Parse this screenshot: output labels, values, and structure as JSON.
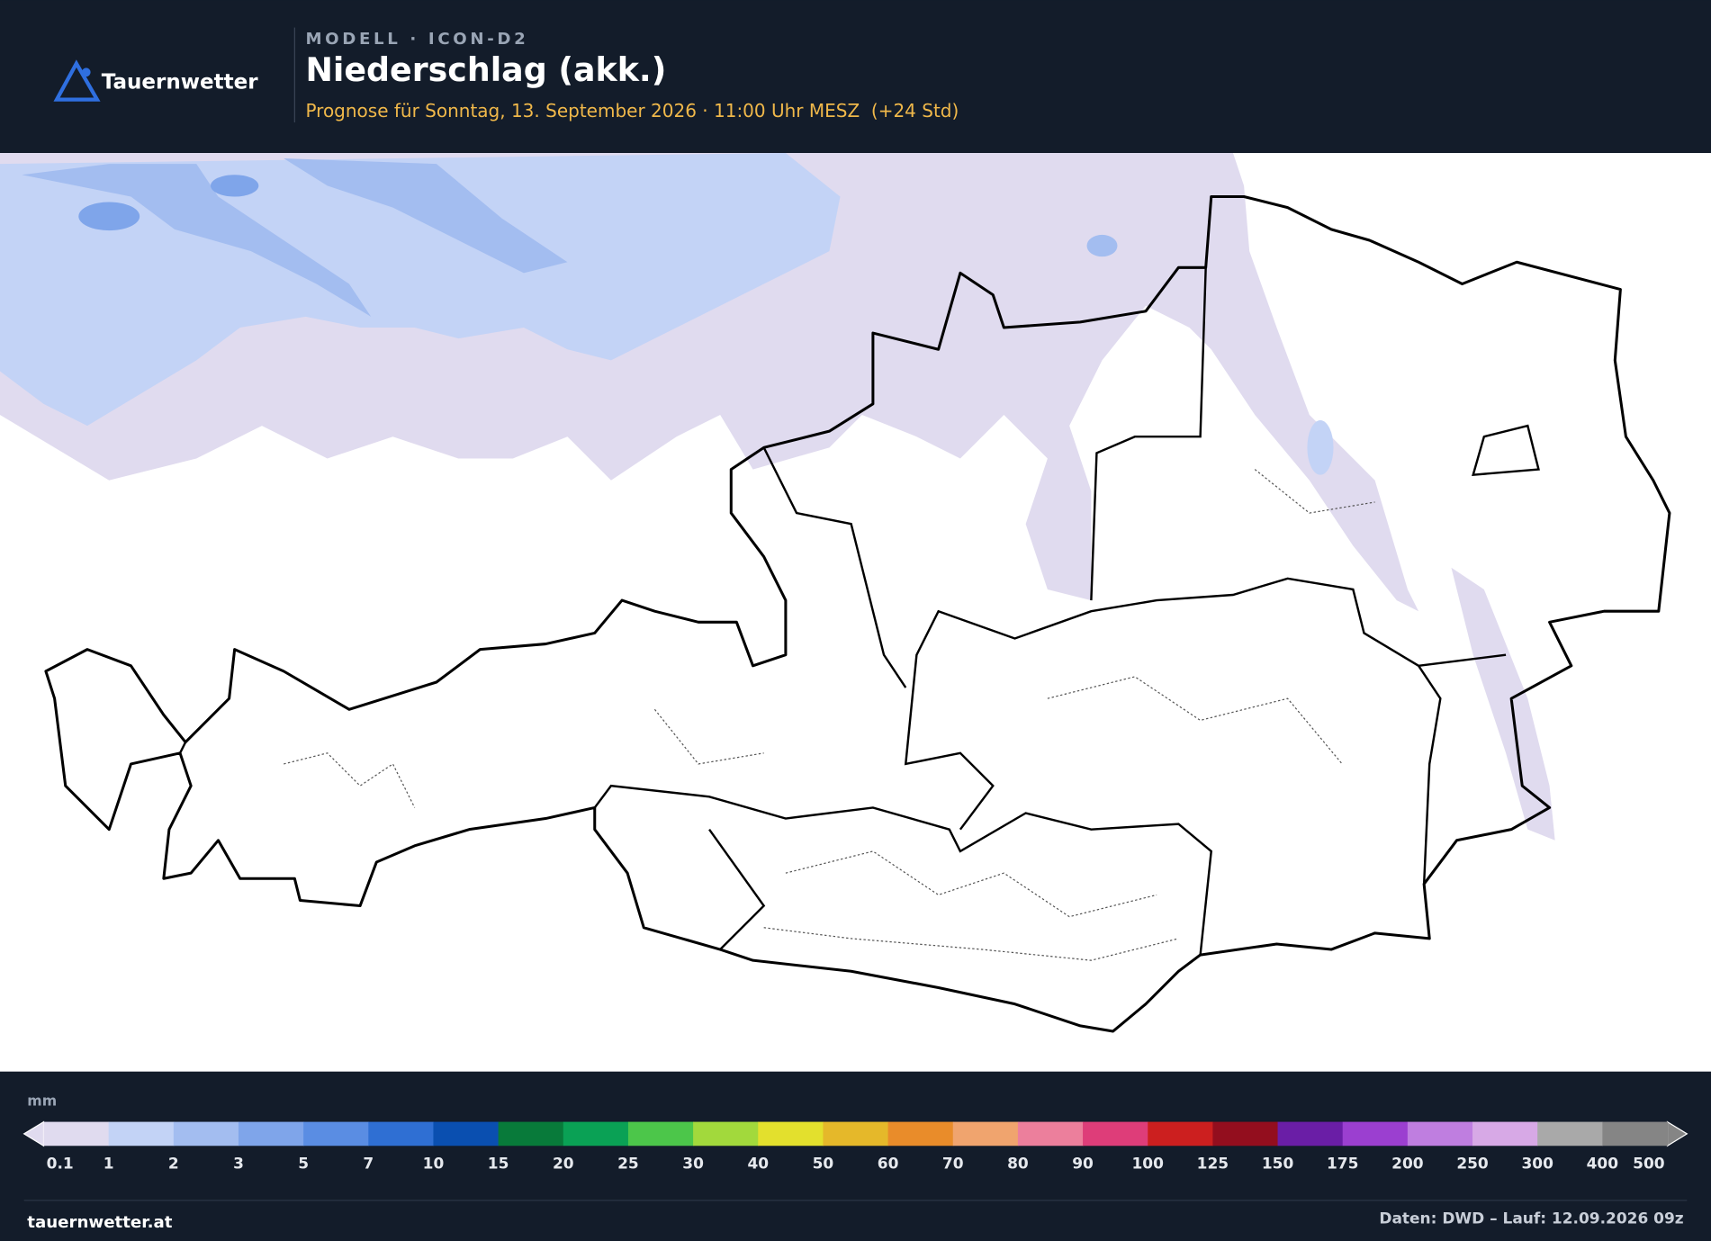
{
  "header": {
    "brand": "Tauernwetter",
    "model": "MODELL · ICON-D2",
    "title": "Niederschlag (akk.)",
    "subtitle": "Prognose für Sonntag, 13. September 2026 · 11:00 Uhr MESZ  (+24 Std)"
  },
  "legend": {
    "unit": "mm",
    "ticks": [
      0.1,
      1,
      2,
      3,
      5,
      7,
      10,
      15,
      20,
      25,
      30,
      40,
      50,
      60,
      70,
      80,
      90,
      100,
      125,
      150,
      175,
      200,
      250,
      300,
      400,
      500
    ],
    "colors": [
      "#e0dbef",
      "#c3d3f6",
      "#a3bdf0",
      "#7fa5ea",
      "#5a8de3",
      "#2f6fd3",
      "#0a4fb0",
      "#087a3a",
      "#0aa155",
      "#4cc64a",
      "#a2d93c",
      "#e3e02d",
      "#e5b82a",
      "#e98c2a",
      "#f0a46e",
      "#ec7f9c",
      "#de3d79",
      "#cc1f1f",
      "#930e1e",
      "#6a1ea6",
      "#9b3fd0",
      "#bf7ee0",
      "#d7a9e6",
      "#a9a9a9",
      "#858585"
    ]
  },
  "footer": {
    "site": "tauernwetter.at",
    "source": "Daten: DWD – Lauf: 12.09.2026 09z"
  }
}
